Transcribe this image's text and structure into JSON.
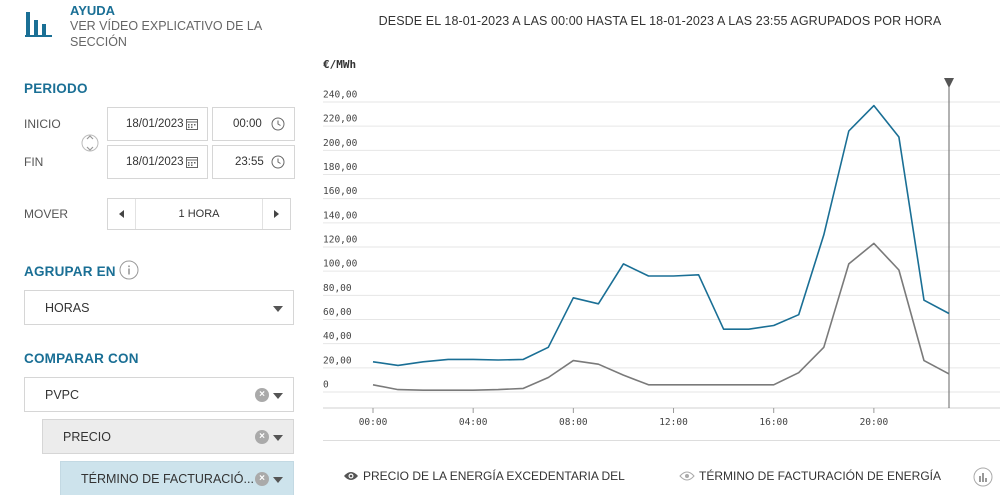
{
  "help": {
    "title": "AYUDA",
    "subtitle": "VER VÍDEO EXPLICATIVO DE LA SECCIÓN"
  },
  "periodo": {
    "title": "PERIODO",
    "inicio_label": "INICIO",
    "fin_label": "FIN",
    "inicio_date": "18/01/2023",
    "inicio_time": "00:00",
    "fin_date": "18/01/2023",
    "fin_time": "23:55"
  },
  "mover": {
    "label": "MOVER",
    "value": "1 HORA"
  },
  "agrupar": {
    "title": "AGRUPAR EN",
    "value": "HORAS"
  },
  "comparar": {
    "title": "COMPARAR CON",
    "items": [
      "PVPC",
      "PRECIO",
      "TÉRMINO DE FACTURACIÓ..."
    ]
  },
  "header": "DESDE EL 18-01-2023 A LAS 00:00 HASTA EL 18-01-2023 A LAS 23:55 AGRUPADOS POR HORA",
  "legend": {
    "item1": "PRECIO DE LA ENERGÍA EXCEDENTARIA DEL",
    "item2": "TÉRMINO DE FACTURACIÓN DE ENERGÍA"
  },
  "colors": {
    "accent": "#1a6f95",
    "series1": "#1a6f95",
    "series2": "#7a7a7a"
  },
  "chart_data": {
    "type": "line",
    "ylabel": "€/MWh",
    "ylim": [
      0,
      240
    ],
    "yticks": [
      "240,00",
      "220,00",
      "200,00",
      "180,00",
      "160,00",
      "140,00",
      "120,00",
      "100,00",
      "80,00",
      "60,00",
      "40,00",
      "20,00",
      "0"
    ],
    "xticks": [
      "00:00",
      "04:00",
      "08:00",
      "12:00",
      "16:00",
      "20:00"
    ],
    "x": [
      0,
      1,
      2,
      3,
      4,
      5,
      6,
      7,
      8,
      9,
      10,
      11,
      12,
      13,
      14,
      15,
      16,
      17,
      18,
      19,
      20,
      21,
      22,
      23
    ],
    "series": [
      {
        "values": [
          25,
          22,
          25,
          27,
          27,
          26.5,
          27,
          37,
          78,
          73,
          106,
          96,
          96,
          97,
          52,
          52,
          55,
          64,
          130,
          216,
          237,
          211,
          76,
          65
        ]
      },
      {
        "values": [
          6,
          2,
          1.5,
          1.5,
          1.5,
          2,
          3,
          12,
          26,
          23,
          14,
          6,
          6,
          6,
          6,
          6,
          6,
          16,
          37,
          106,
          123,
          101,
          26,
          15
        ]
      }
    ]
  }
}
